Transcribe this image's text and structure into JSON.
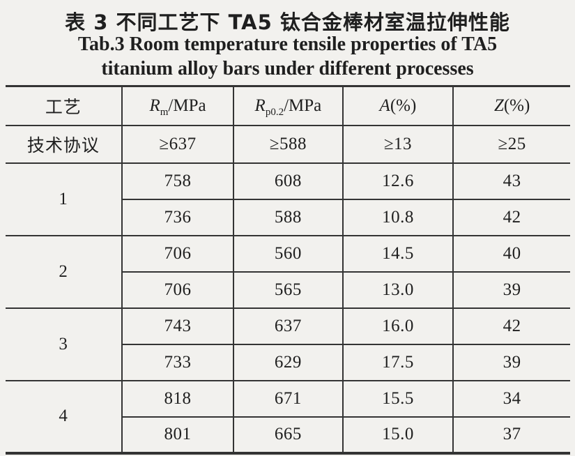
{
  "title": {
    "zh": "表 3  不同工艺下 TA5 钛合金棒材室温拉伸性能",
    "en_line1": "Tab.3  Room temperature tensile properties of TA5",
    "en_line2": "titanium alloy bars under different processes"
  },
  "colors": {
    "background": "#f2f1ee",
    "text": "#1f1f1f",
    "rule_line": "#343434"
  },
  "table": {
    "columns": [
      {
        "label": "工艺",
        "base": "",
        "sub": "",
        "rest": ""
      },
      {
        "label": "",
        "base": "R",
        "sub": "m",
        "rest": "/MPa"
      },
      {
        "label": "",
        "base": "R",
        "sub": "p0.2",
        "rest": "/MPa"
      },
      {
        "label": "",
        "base": "A",
        "sub": "",
        "rest": "(%)"
      },
      {
        "label": "",
        "base": "Z",
        "sub": "",
        "rest": "(%)"
      }
    ],
    "spec_row": {
      "label": "技术协议",
      "values": [
        "≥637",
        "≥588",
        "≥13",
        "≥25"
      ]
    },
    "groups": [
      {
        "process": "1",
        "rows": [
          [
            "758",
            "608",
            "12.6",
            "43"
          ],
          [
            "736",
            "588",
            "10.8",
            "42"
          ]
        ]
      },
      {
        "process": "2",
        "rows": [
          [
            "706",
            "560",
            "14.5",
            "40"
          ],
          [
            "706",
            "565",
            "13.0",
            "39"
          ]
        ]
      },
      {
        "process": "3",
        "rows": [
          [
            "743",
            "637",
            "16.0",
            "42"
          ],
          [
            "733",
            "629",
            "17.5",
            "39"
          ]
        ]
      },
      {
        "process": "4",
        "rows": [
          [
            "818",
            "671",
            "15.5",
            "34"
          ],
          [
            "801",
            "665",
            "15.0",
            "37"
          ]
        ]
      }
    ]
  }
}
